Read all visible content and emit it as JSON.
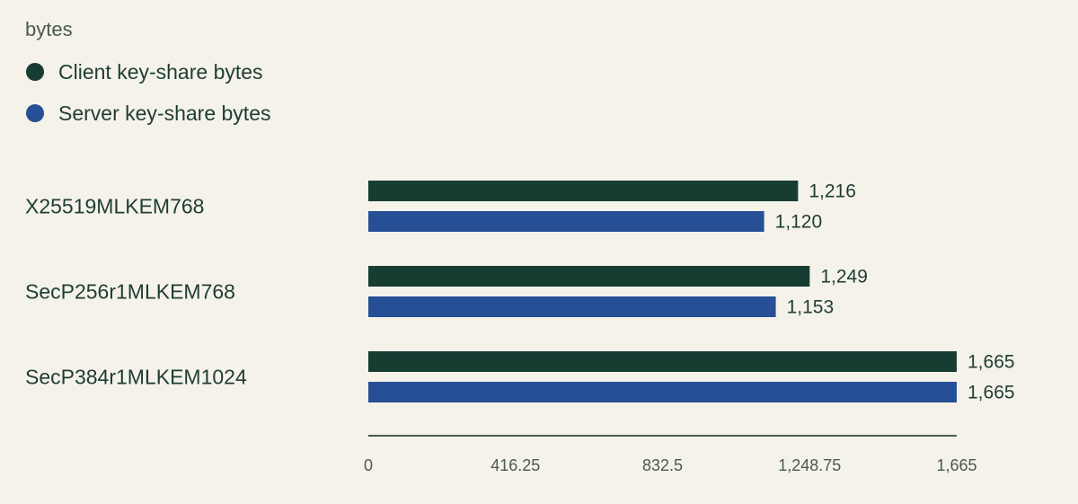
{
  "chart_data": {
    "type": "bar",
    "orientation": "horizontal",
    "unit_label": "bytes",
    "categories": [
      "X25519MLKEM768",
      "SecP256r1MLKEM768",
      "SecP384r1MLKEM1024"
    ],
    "series": [
      {
        "name": "Client key-share bytes",
        "color": "#173d33",
        "values": [
          1216,
          1249,
          1665
        ],
        "value_labels": [
          "1,216",
          "1,249",
          "1,665"
        ]
      },
      {
        "name": "Server key-share bytes",
        "color": "#264f96",
        "values": [
          1120,
          1153,
          1665
        ],
        "value_labels": [
          "1,120",
          "1,153",
          "1,665"
        ]
      }
    ],
    "xlim": [
      0,
      1665
    ],
    "ticks": [
      0,
      416.25,
      832.5,
      1248.75,
      1665
    ],
    "tick_labels": [
      "0",
      "416.25",
      "832.5",
      "1,248.75",
      "1,665"
    ],
    "legend_position": "top-left",
    "grid": false,
    "axis_color": "#4a5a4e"
  }
}
